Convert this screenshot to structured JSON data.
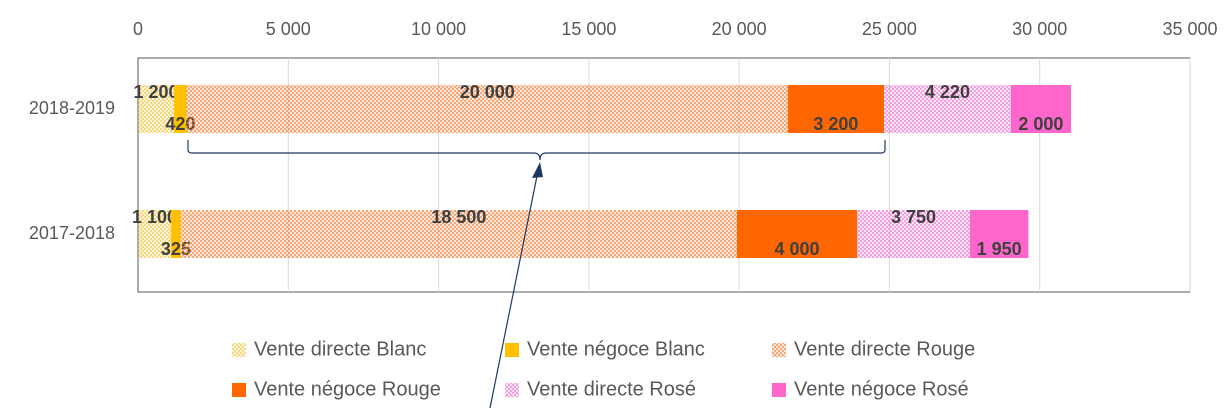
{
  "chart_data": {
    "type": "bar",
    "orientation": "horizontal",
    "categories": [
      "2018-2019",
      "2017-2018"
    ],
    "xlim": [
      0,
      35000
    ],
    "xticks": [
      0,
      {
        "value": 5000,
        "label": "5 000"
      },
      {
        "value": 10000,
        "label": "10 000"
      },
      {
        "value": 15000,
        "label": "15 000"
      },
      {
        "value": 20000,
        "label": "20 000"
      },
      {
        "value": 25000,
        "label": "25 000"
      },
      {
        "value": 30000,
        "label": "30 000"
      },
      {
        "value": 35000,
        "label": "35 000"
      }
    ],
    "grid": true,
    "legend": "bottom",
    "series": [
      {
        "name": "Vente directe Blanc",
        "color": "#f0c23a",
        "pattern": "dots",
        "values": [
          1200,
          1100
        ],
        "value_labels": [
          "1 200",
          "1 100"
        ]
      },
      {
        "name": "Vente négoce Blanc",
        "color": "#ffc000",
        "values": [
          420,
          325
        ]
      },
      {
        "name": "Vente directe Rouge",
        "color": "#f07a30",
        "pattern": "dots",
        "values": [
          20000,
          18500
        ],
        "value_labels": [
          "20 000",
          "18 500"
        ]
      },
      {
        "name": "Vente négoce Rouge",
        "color": "#ff6600",
        "values": [
          3200,
          4000
        ],
        "value_labels": [
          "3 200",
          "4 000"
        ]
      },
      {
        "name": "Vente directe Rosé",
        "color": "#ee6fd0",
        "pattern": "dots",
        "values": [
          4220,
          3750
        ],
        "value_labels": [
          "4 220",
          "3 750"
        ]
      },
      {
        "name": "Vente négoce Rosé",
        "color": "#ff66cc",
        "values": [
          2000,
          1950
        ],
        "value_labels": [
          "2 000",
          "1 950"
        ]
      }
    ]
  }
}
